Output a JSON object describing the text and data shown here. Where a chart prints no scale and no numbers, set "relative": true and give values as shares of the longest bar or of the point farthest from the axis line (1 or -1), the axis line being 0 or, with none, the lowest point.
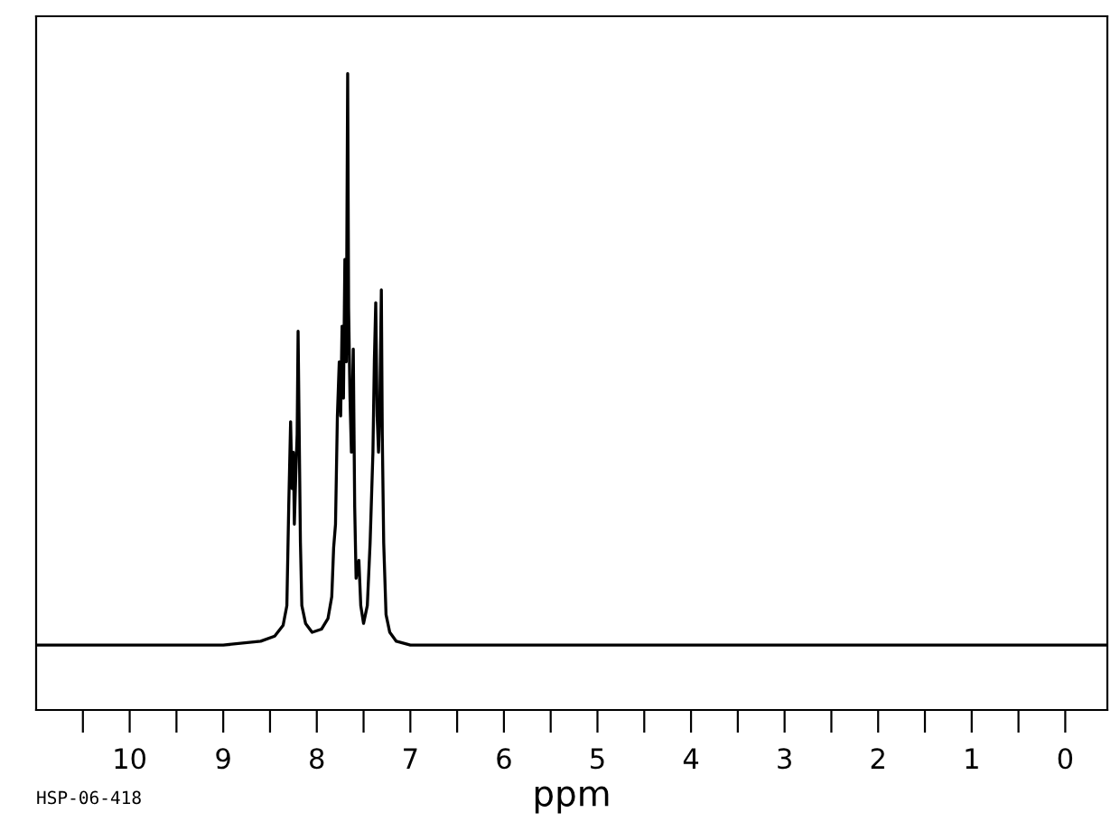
{
  "chart_data": {
    "type": "line",
    "relative": true,
    "xlabel": "ppm",
    "tick_labels": "x",
    "grid": false,
    "marker": "none",
    "line_style": "solid",
    "annotations": [
      "HSP-06-418"
    ],
    "xlim": [
      11.0,
      -0.45
    ],
    "xticks": [
      {
        "value": 10.5,
        "label": null
      },
      10,
      {
        "value": 9.5,
        "label": null
      },
      9,
      {
        "value": 8.5,
        "label": null
      },
      8,
      {
        "value": 7.5,
        "label": null
      },
      7,
      {
        "value": 6.5,
        "label": null
      },
      6,
      {
        "value": 5.5,
        "label": null
      },
      5,
      {
        "value": 4.5,
        "label": null
      },
      4,
      {
        "value": 3.5,
        "label": null
      },
      3,
      {
        "value": 2.5,
        "label": null
      },
      2,
      {
        "value": 1.5,
        "label": null
      },
      1,
      {
        "value": 0.5,
        "label": null
      },
      0
    ],
    "series": [
      {
        "color": "#000000",
        "x": [
          11.0,
          9.0,
          8.6,
          8.45,
          8.36,
          8.32,
          8.3,
          8.28,
          8.265,
          8.25,
          8.24,
          8.225,
          8.21,
          8.2,
          8.19,
          8.175,
          8.16,
          8.12,
          8.05,
          7.95,
          7.88,
          7.84,
          7.82,
          7.8,
          7.78,
          7.76,
          7.745,
          7.73,
          7.715,
          7.7,
          7.685,
          7.67,
          7.66,
          7.645,
          7.63,
          7.61,
          7.595,
          7.58,
          7.55,
          7.53,
          7.5,
          7.46,
          7.43,
          7.4,
          7.385,
          7.37,
          7.355,
          7.34,
          7.325,
          7.31,
          7.3,
          7.285,
          7.26,
          7.22,
          7.15,
          7.0,
          -0.45
        ],
        "values": [
          0.102,
          0.102,
          0.108,
          0.116,
          0.133,
          0.164,
          0.32,
          0.453,
          0.348,
          0.405,
          0.292,
          0.368,
          0.433,
          0.595,
          0.462,
          0.263,
          0.164,
          0.136,
          0.122,
          0.127,
          0.144,
          0.178,
          0.255,
          0.292,
          0.462,
          0.547,
          0.462,
          0.603,
          0.49,
          0.708,
          0.547,
          1.0,
          0.632,
          0.49,
          0.405,
          0.567,
          0.32,
          0.207,
          0.235,
          0.164,
          0.136,
          0.164,
          0.263,
          0.405,
          0.547,
          0.64,
          0.462,
          0.405,
          0.49,
          0.66,
          0.433,
          0.263,
          0.15,
          0.122,
          0.108,
          0.102,
          0.102
        ]
      }
    ]
  }
}
